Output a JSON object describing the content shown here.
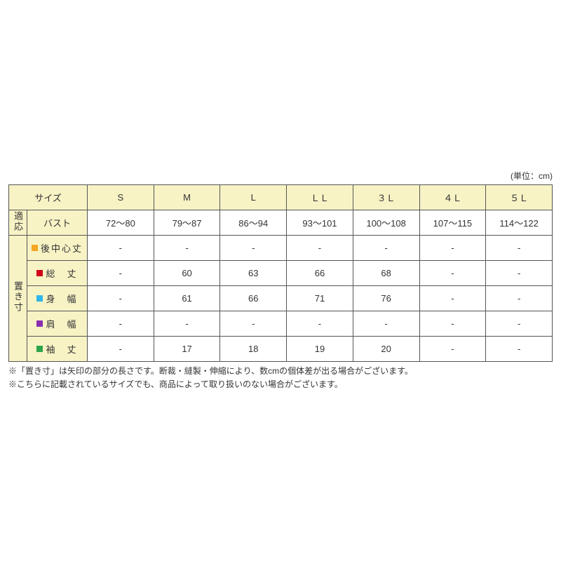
{
  "unit_label": "(単位：cm)",
  "header": {
    "size_label": "サイズ",
    "sizes": [
      "S",
      "M",
      "L",
      "ＬＬ",
      "３Ｌ",
      "４Ｌ",
      "５Ｌ"
    ]
  },
  "tekiou": {
    "group_label": "適応",
    "row_label": "バスト",
    "values": [
      "72～80",
      "79～87",
      "86～94",
      "93～101",
      "100～108",
      "107～115",
      "114～122"
    ]
  },
  "okisun": {
    "group_label": "置き寸",
    "rows": [
      {
        "marker_color": "#f5a623",
        "label": "後中心丈",
        "values": [
          "-",
          "-",
          "-",
          "-",
          "-",
          "-",
          "-"
        ]
      },
      {
        "marker_color": "#d0021b",
        "label": "総　丈",
        "values": [
          "-",
          "60",
          "63",
          "66",
          "68",
          "-",
          "-"
        ]
      },
      {
        "marker_color": "#2fb5e8",
        "label": "身　幅",
        "values": [
          "-",
          "61",
          "66",
          "71",
          "76",
          "-",
          "-"
        ]
      },
      {
        "marker_color": "#8b2fb0",
        "label": "肩　幅",
        "values": [
          "-",
          "-",
          "-",
          "-",
          "-",
          "-",
          "-"
        ]
      },
      {
        "marker_color": "#2ea44f",
        "label": "袖　丈",
        "values": [
          "-",
          "17",
          "18",
          "19",
          "20",
          "-",
          "-"
        ]
      }
    ]
  },
  "notes": [
    "※「置き寸」は矢印の部分の長さです。断裁・縫製・伸縮により、数cmの個体差が出る場合がございます。",
    "※こちらに記載されているサイズでも、商品によって取り扱いのない場合がございます。"
  ]
}
